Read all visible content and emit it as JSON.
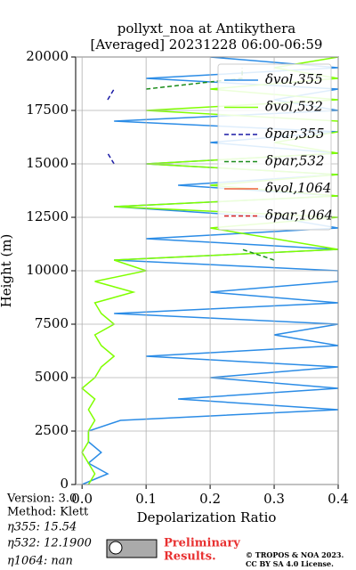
{
  "chart_data": {
    "type": "line",
    "orientation": "horizontal",
    "title": [
      "pollyxt_noa at Antikythera",
      "[Averaged] 20231228 06:00-06:59"
    ],
    "x_label": "Depolarization Ratio",
    "y_label": "Height (m)",
    "xlim": [
      -0.01,
      0.4
    ],
    "xticks": [
      {
        "value": 0,
        "label": "0.0"
      },
      0.1,
      0.2,
      0.3,
      0.4
    ],
    "ylim": [
      0,
      20000
    ],
    "yticks": [
      0,
      2500,
      5000,
      7500,
      10000,
      12500,
      15000,
      17500,
      20000
    ],
    "grid": true,
    "legend": "upper right",
    "heights": [
      0,
      500,
      1000,
      1500,
      2000,
      2500,
      3000,
      3500,
      4000,
      4500,
      5000,
      5500,
      6000,
      6500,
      7000,
      7500,
      8000,
      8500,
      9000,
      9500,
      10000,
      10500,
      11000,
      11500,
      12000,
      12500,
      13000,
      13500,
      14000,
      14500,
      15000,
      15500,
      16000,
      16500,
      17000,
      17500,
      18000,
      18500,
      19000,
      19500,
      20000
    ],
    "series": [
      {
        "name": "δvol,355",
        "color": "#2b8ce6",
        "dash": false,
        "values": [
          0,
          0.04,
          0.01,
          0.03,
          0.01,
          0.01,
          0.06,
          0.4,
          0.15,
          0.4,
          0.2,
          0.4,
          0.1,
          0.4,
          0.3,
          0.4,
          0.05,
          0.4,
          0.2,
          0.4,
          0.4,
          0.05,
          0.4,
          0.1,
          0.4,
          0.3,
          0.05,
          0.4,
          0.15,
          0.4,
          0.1,
          0.4,
          0.2,
          0.4,
          0.05,
          0.4,
          0.3,
          0.4,
          0.1,
          0.4,
          0.2
        ]
      },
      {
        "name": "δvol,532",
        "color": "#80ff00",
        "dash": false,
        "values": [
          0.01,
          0.02,
          0.01,
          0,
          0.01,
          0.01,
          0.02,
          0.01,
          0.02,
          0,
          0.02,
          0.03,
          0.05,
          0.03,
          0.02,
          0.05,
          0.03,
          0.02,
          0.08,
          0.02,
          0.1,
          0.05,
          0.4,
          0.3,
          0.2,
          0.4,
          0.05,
          0.4,
          0.2,
          0.4,
          0.1,
          0.4,
          0.3,
          0.4,
          0.4,
          0.1,
          0.4,
          0.2,
          0.4,
          0.3,
          0.4
        ]
      },
      {
        "name": "δpar,355",
        "color": "#1a1aa6",
        "dash": true,
        "values": [
          null,
          null,
          null,
          null,
          null,
          null,
          null,
          null,
          null,
          null,
          null,
          null,
          null,
          null,
          null,
          null,
          null,
          null,
          null,
          null,
          null,
          null,
          null,
          null,
          null,
          null,
          null,
          null,
          null,
          null,
          0.05,
          0.04,
          null,
          null,
          null,
          null,
          0.04,
          0.05,
          null,
          null,
          null
        ]
      },
      {
        "name": "δpar,532",
        "color": "#1a8c1a",
        "dash": true,
        "values": [
          null,
          null,
          null,
          null,
          null,
          null,
          null,
          null,
          null,
          null,
          null,
          null,
          null,
          null,
          null,
          null,
          null,
          null,
          null,
          null,
          null,
          0.3,
          0.25,
          null,
          null,
          null,
          null,
          null,
          null,
          null,
          null,
          null,
          null,
          null,
          null,
          null,
          null,
          0.1,
          0.25,
          0.25,
          null
        ]
      },
      {
        "name": "δvol,1064",
        "color": "#f0643c",
        "dash": false,
        "values": [
          null,
          null,
          null,
          null,
          null,
          null,
          null,
          null,
          null,
          null,
          null,
          null,
          null,
          null,
          null,
          null,
          null,
          null,
          null,
          null,
          null,
          null,
          null,
          null,
          null,
          null,
          null,
          null,
          null,
          null,
          null,
          null,
          null,
          null,
          null,
          null,
          null,
          null,
          null,
          null,
          null
        ]
      },
      {
        "name": "δpar,1064",
        "color": "#d62020",
        "dash": true,
        "values": [
          null,
          null,
          null,
          null,
          null,
          null,
          null,
          null,
          null,
          null,
          null,
          null,
          null,
          null,
          null,
          null,
          null,
          null,
          null,
          null,
          null,
          null,
          null,
          null,
          null,
          null,
          null,
          null,
          null,
          null,
          null,
          null,
          null,
          null,
          null,
          null,
          null,
          null,
          null,
          null,
          null
        ]
      }
    ]
  },
  "footer": {
    "version": "Version: 3.0",
    "method": "Method: Klett",
    "eta355": "η355:  15.54",
    "eta532": "η532: 12.1900",
    "eta1064": "η1064:    nan",
    "preliminary": [
      "Preliminary",
      "Results."
    ],
    "copyright": [
      "© TROPOS & NOA 2023.",
      "CC BY SA 4.0 License."
    ]
  }
}
